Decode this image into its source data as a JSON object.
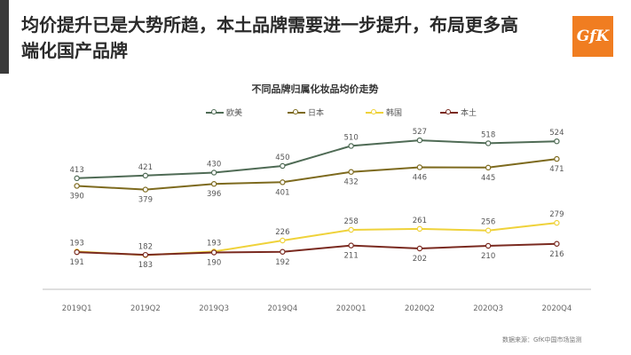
{
  "page": {
    "title": "均价提升已是大势所趋，本土品牌需要进一步提升，布局更多高端化国产品牌",
    "logo_text": "GfK",
    "source": "数据来源：GfK中国市场监测"
  },
  "colors": {
    "accent_bar": "#3a3a3a",
    "logo_bg": "#f07d21",
    "axis": "#bfbfbf"
  },
  "chart_data": {
    "type": "line",
    "title": "不同品牌归属化妆品均价走势",
    "categories": [
      "2019Q1",
      "2019Q2",
      "2019Q3",
      "2019Q4",
      "2020Q1",
      "2020Q2",
      "2020Q3",
      "2020Q4"
    ],
    "series": [
      {
        "name": "欧美",
        "color": "#4f6b55",
        "values": [
          413,
          421,
          430,
          450,
          510,
          527,
          518,
          524
        ]
      },
      {
        "name": "日本",
        "color": "#7d6a1e",
        "values": [
          390,
          379,
          396,
          401,
          432,
          446,
          445,
          471
        ]
      },
      {
        "name": "韩国",
        "color": "#efd23a",
        "values": [
          193,
          182,
          193,
          226,
          258,
          261,
          256,
          279
        ]
      },
      {
        "name": "本土",
        "color": "#7a2a20",
        "values": [
          191,
          183,
          190,
          192,
          211,
          202,
          210,
          216
        ]
      }
    ],
    "ylim": [
      90,
      610
    ],
    "grid": false,
    "legend": "top"
  }
}
